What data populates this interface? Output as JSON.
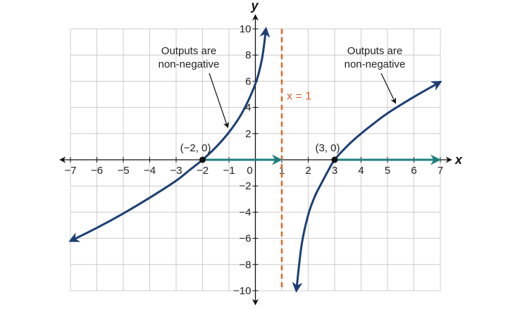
{
  "chart_data": {
    "type": "line",
    "title": "",
    "xlabel": "x",
    "ylabel": "y",
    "xlim": [
      -7,
      7
    ],
    "ylim": [
      -10,
      10
    ],
    "grid": true,
    "x_ticks": [
      -7,
      -6,
      -5,
      -4,
      -3,
      -2,
      -1,
      0,
      1,
      2,
      3,
      4,
      5,
      6,
      7
    ],
    "x_tick_labels": [
      "−7",
      "−6",
      "−5",
      "−4",
      "−3",
      "−2",
      "−1",
      "0",
      "1",
      "2",
      "3",
      "4",
      "5",
      "6",
      "7"
    ],
    "y_ticks": [
      -10,
      -8,
      -6,
      -4,
      -2,
      2,
      4,
      6,
      8,
      10
    ],
    "y_tick_labels": [
      "−10",
      "−8",
      "−6",
      "−4",
      "−2",
      "2",
      "4",
      "6",
      "8",
      "10"
    ],
    "asymptote": {
      "x": 1,
      "label": "x = 1",
      "color": "#e06c2c"
    },
    "colors": {
      "curve": "#1b3f74",
      "ray": "#1e7f7f",
      "grid": "#cccccc"
    },
    "series": [
      {
        "x": [
          -7,
          -6,
          -5,
          -4,
          -3,
          -2.5,
          -2,
          -1.5,
          -1,
          -0.5,
          0,
          0.25,
          0.4
        ],
        "y": [
          -6.2,
          -5.2,
          -4.1,
          -2.9,
          -1.6,
          -0.8,
          0,
          0.95,
          2.1,
          3.6,
          5.8,
          7.7,
          10
        ]
      },
      {
        "x": [
          1.55,
          1.75,
          2,
          2.25,
          2.5,
          2.75,
          3,
          3.5,
          4,
          4.5,
          5,
          6,
          7
        ],
        "y": [
          -10,
          -6.5,
          -4.2,
          -2.8,
          -1.8,
          -0.85,
          0,
          1.1,
          2,
          2.8,
          3.55,
          4.8,
          5.95
        ]
      }
    ],
    "rays": [
      {
        "from": -2,
        "to": 1
      },
      {
        "from": 3,
        "to": 7
      }
    ],
    "points": [
      {
        "x": -2,
        "y": 0,
        "label": "(−2, 0)"
      },
      {
        "x": 3,
        "y": 0,
        "label": "(3, 0)"
      }
    ],
    "annotations": [
      {
        "lines": [
          "Outputs are",
          "non-negative"
        ],
        "arrow_to": [
          -1.05,
          2.5
        ]
      },
      {
        "lines": [
          "Outputs are",
          "non-negative"
        ],
        "arrow_to": [
          5.3,
          4.35
        ]
      }
    ]
  }
}
